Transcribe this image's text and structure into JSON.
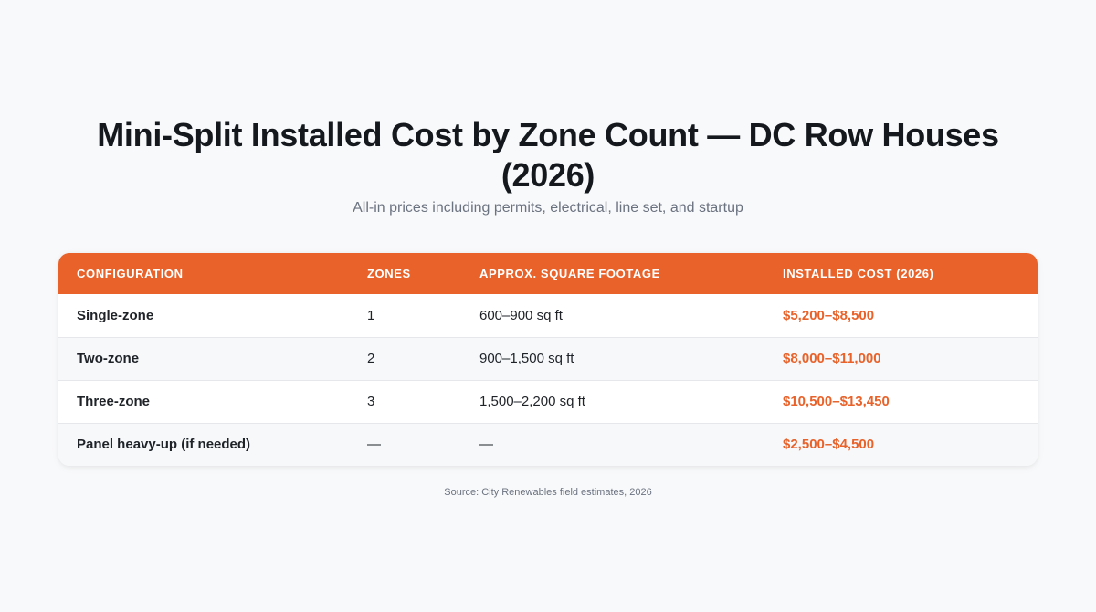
{
  "page": {
    "title": "Mini-Split Installed Cost by Zone Count — DC Row Houses (2026)",
    "subtitle": "All-in prices including permits, electrical, line set, and startup",
    "source": "Source: City Renewables field estimates, 2026"
  },
  "colors": {
    "accent": "#e8622a",
    "background": "#f8f9fa",
    "row_alt": "#f6f8fa"
  },
  "chart_data": {
    "type": "table",
    "columns": [
      "CONFIGURATION",
      "ZONES",
      "APPROX. SQUARE FOOTAGE",
      "INSTALLED COST (2026)"
    ],
    "rows": [
      [
        "Single-zone",
        "1",
        "600–900 sq ft",
        "$5,200–$8,500"
      ],
      [
        "Two-zone",
        "2",
        "900–1,500 sq ft",
        "$8,000–$11,000"
      ],
      [
        "Three-zone",
        "3",
        "1,500–2,200 sq ft",
        "$10,500–$13,450"
      ],
      [
        "Panel heavy-up (if needed)",
        "—",
        "—",
        "$2,500–$4,500"
      ]
    ]
  }
}
